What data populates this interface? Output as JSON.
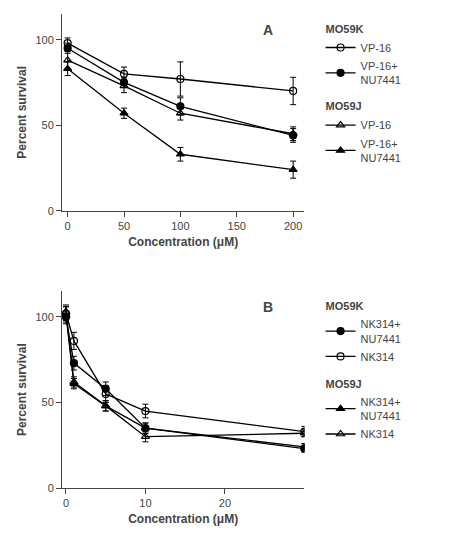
{
  "chart_data": [
    {
      "type": "line",
      "xlabel": "Concentration (μM)",
      "ylabel": "Percent survival",
      "annotation": "A",
      "xlim": [
        -5,
        210
      ],
      "ylim": [
        0,
        115
      ],
      "xticks": [
        0,
        50,
        100,
        150,
        200
      ],
      "yticks": [
        0,
        50,
        100
      ],
      "grid": false,
      "legend": "right",
      "series": [
        {
          "name": "VP-16",
          "group": "MO59K",
          "marker": "circle-open",
          "color": "black",
          "x": [
            0,
            50,
            100,
            200
          ],
          "values": [
            98,
            80,
            77,
            70
          ],
          "errors": [
            3,
            4,
            10,
            8
          ]
        },
        {
          "name": "VP-16+\nNU7441",
          "group": "MO59K",
          "marker": "circle",
          "color": "black",
          "x": [
            0,
            50,
            100,
            200
          ],
          "values": [
            95,
            75,
            61,
            44
          ],
          "errors": [
            3,
            3,
            5,
            4
          ]
        },
        {
          "name": "VP-16",
          "group": "MO59J",
          "marker": "triangle-up-open",
          "color": "black",
          "x": [
            0,
            50,
            100,
            200
          ],
          "values": [
            88,
            73,
            57,
            45
          ],
          "errors": [
            5,
            4,
            4,
            4
          ]
        },
        {
          "name": "VP-16+\nNU7441",
          "group": "MO59J",
          "marker": "triangle-up",
          "color": "black",
          "x": [
            0,
            50,
            100,
            200
          ],
          "values": [
            83,
            57,
            33,
            24
          ],
          "errors": [
            4,
            3,
            4,
            5
          ]
        }
      ]
    },
    {
      "type": "line",
      "xlabel": "Concentration (μM)",
      "ylabel": "Percent survival",
      "annotation": "B",
      "xlim": [
        -0.5,
        30
      ],
      "ylim": [
        0,
        115
      ],
      "xticks": [
        0,
        10,
        20
      ],
      "yticks": [
        0,
        50,
        100
      ],
      "grid": false,
      "legend": "right",
      "series": [
        {
          "name": "NK314+\nNU7441",
          "group": "MO59K",
          "marker": "circle",
          "color": "black",
          "x": [
            0,
            1,
            5,
            10,
            30
          ],
          "values": [
            100,
            73,
            58,
            35,
            23
          ],
          "errors": [
            3,
            4,
            4,
            3,
            2
          ]
        },
        {
          "name": "NK314",
          "group": "MO59K",
          "marker": "circle-open",
          "color": "black",
          "x": [
            0,
            1,
            5,
            10,
            30
          ],
          "values": [
            102,
            86,
            55,
            45,
            33
          ],
          "errors": [
            4,
            5,
            5,
            4,
            3
          ]
        },
        {
          "name": "NK314+\nNU7441",
          "group": "MO59J",
          "marker": "triangle-up",
          "color": "black",
          "x": [
            0,
            1,
            5,
            10,
            30
          ],
          "values": [
            101,
            61,
            48,
            35,
            24
          ],
          "errors": [
            5,
            3,
            3,
            3,
            2
          ]
        },
        {
          "name": "NK314",
          "group": "MO59J",
          "marker": "triangle-up-open",
          "color": "black",
          "x": [
            0,
            1,
            5,
            10,
            30
          ],
          "values": [
            103,
            62,
            48,
            30,
            32
          ],
          "errors": [
            4,
            3,
            3,
            3,
            2
          ]
        }
      ]
    }
  ]
}
